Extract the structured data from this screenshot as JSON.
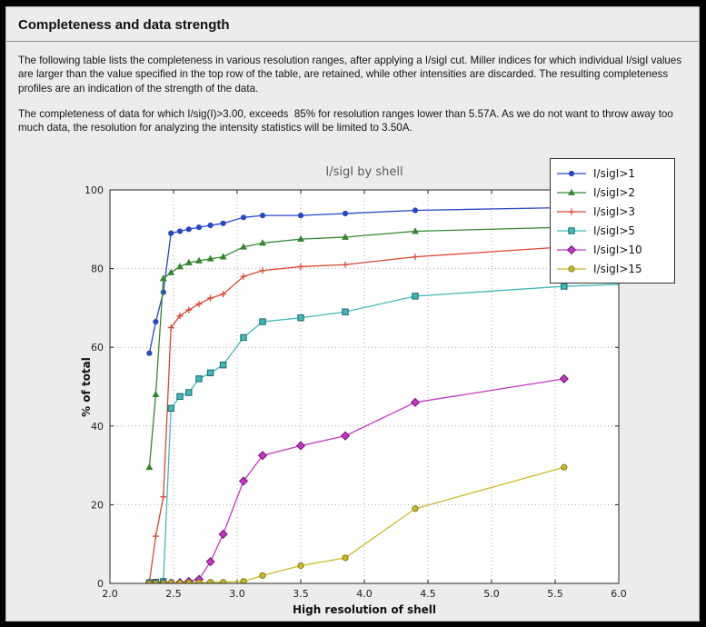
{
  "window": {
    "title": "Completeness and data strength",
    "paragraph1": "The following table lists the completeness in various resolution ranges, after applying a I/sigI cut. Miller indices for which individual I/sigI values are larger than the value specified in the top row of the table, are retained, while other intensities are discarded. The resulting completeness profiles are an indication of the strength of the data.",
    "paragraph2": "The completeness of data for which I/sig(I)>3.00, exceeds  85% for resolution ranges lower than 5.57A. As we do not want to throw away too much data, the resolution for analyzing the intensity statistics will be limited to 3.50A."
  },
  "chart_data": {
    "type": "line",
    "title": "I/sigI by shell",
    "xlabel": "High resolution of shell",
    "ylabel": "% of total",
    "xlim": [
      2.0,
      6.0
    ],
    "ylim": [
      0,
      100
    ],
    "x_ticks": [
      "2.0",
      "2.5",
      "3.0",
      "3.5",
      "4.0",
      "4.5",
      "5.0",
      "5.5",
      "6.0"
    ],
    "y_ticks": [
      "0",
      "20",
      "40",
      "60",
      "80",
      "100"
    ],
    "grid": true,
    "legend_position": "upper right",
    "x": [
      2.31,
      2.36,
      2.42,
      2.48,
      2.55,
      2.62,
      2.7,
      2.79,
      2.89,
      3.05,
      3.2,
      3.5,
      3.85,
      4.4,
      5.57
    ],
    "series": [
      {
        "name": "I/sigI>1",
        "color": "#2847c4",
        "edge_color": null,
        "marker": "circle",
        "values": [
          58.5,
          66.5,
          74,
          89,
          89.5,
          90,
          90.5,
          91,
          91.5,
          93,
          93.5,
          93.5,
          94,
          94.8,
          95.5
        ],
        "edge_value": 95.8
      },
      {
        "name": "I/sigI>2",
        "color": "#35872f",
        "edge_color": null,
        "marker": "triangle",
        "values": [
          29.5,
          48,
          77.5,
          79,
          80.5,
          81.5,
          82,
          82.5,
          83,
          85.5,
          86.5,
          87.5,
          88,
          89.5,
          90.5
        ],
        "edge_value": 90.8
      },
      {
        "name": "I/sigI>3",
        "color": "#df4431",
        "edge_color": null,
        "marker": "plus",
        "values": [
          0.3,
          12,
          22,
          65,
          68,
          69.5,
          71,
          72.5,
          73.5,
          78,
          79.5,
          80.5,
          81,
          83,
          85.5
        ],
        "edge_value": 86
      },
      {
        "name": "I/sigI>5",
        "color": "#42b8b8",
        "edge_color": "#186868",
        "marker": "square",
        "values": [
          0.2,
          0.3,
          0.5,
          44.5,
          47.5,
          48.5,
          52,
          53.5,
          55.5,
          62.5,
          66.5,
          67.5,
          69,
          73,
          75.5
        ],
        "edge_value": 76
      },
      {
        "name": "I/sigI>10",
        "color": "#c436c4",
        "edge_color": "#6e156e",
        "marker": "diamond",
        "values": [
          0,
          0,
          0,
          0.1,
          0.2,
          0.5,
          1,
          5.5,
          12.5,
          26,
          32.5,
          35,
          37.5,
          46,
          52
        ],
        "edge_value": null
      },
      {
        "name": "I/sigI>15",
        "color": "#c9ba2a",
        "edge_color": "#857a12",
        "marker": "circle-open",
        "values": [
          0,
          0,
          0,
          0.1,
          0.1,
          0.2,
          0.2,
          0.3,
          0.3,
          0.5,
          2,
          4.5,
          6.5,
          19,
          29.5
        ],
        "edge_value": null
      }
    ],
    "plot_colors": {
      "plot_bg": "#ffffff",
      "figure_bg": "#ececec",
      "grid": "#a8a8a8",
      "frame": "#2a2a2a"
    }
  }
}
